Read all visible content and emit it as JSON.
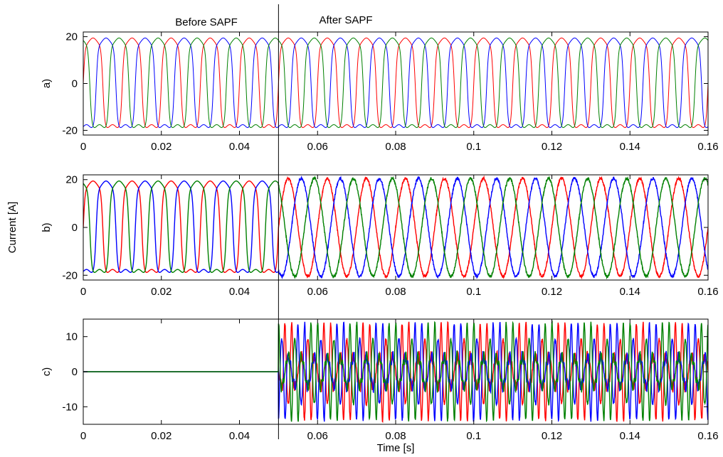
{
  "annotations": {
    "before": "Before SAPF",
    "after": "After SAPF",
    "switch_time": 0.05
  },
  "chart_data": [
    {
      "type": "line",
      "panel_label": "a)",
      "xlabel": "",
      "ylabel": "",
      "xlim": [
        0,
        0.16
      ],
      "ylim": [
        -22,
        22
      ],
      "xticks": [
        0,
        0.02,
        0.04,
        0.06,
        0.08,
        0.1,
        0.12,
        0.14,
        0.16
      ],
      "xtick_labels": [
        "0",
        "0.02",
        "0.04",
        "0.06",
        "0.08",
        "0.1",
        "0.12",
        "0.14",
        "0.16"
      ],
      "yticks": [
        -20,
        0,
        20
      ],
      "ytick_labels": [
        "-20",
        "0",
        "20"
      ],
      "description": "Three-phase distorted load current (quasi-square), unchanged before and after SAPF",
      "series": [
        {
          "color": "#ff0000",
          "phase_deg": 0,
          "before": {
            "shape": "quasi-square",
            "amplitude": 18.5
          },
          "after": {
            "shape": "quasi-square",
            "amplitude": 18.5
          }
        },
        {
          "color": "#0000ff",
          "phase_deg": -120,
          "before": {
            "shape": "quasi-square",
            "amplitude": 18.5
          },
          "after": {
            "shape": "quasi-square",
            "amplitude": 18.5
          }
        },
        {
          "color": "#008000",
          "phase_deg": 120,
          "before": {
            "shape": "quasi-square",
            "amplitude": 18.5
          },
          "after": {
            "shape": "quasi-square",
            "amplitude": 18.5
          }
        }
      ],
      "frequency_hz": 100,
      "grid": false
    },
    {
      "type": "line",
      "panel_label": "b)",
      "xlabel": "",
      "ylabel": "Current [A]",
      "xlim": [
        0,
        0.16
      ],
      "ylim": [
        -22,
        22
      ],
      "xticks": [
        0,
        0.02,
        0.04,
        0.06,
        0.08,
        0.1,
        0.12,
        0.14,
        0.16
      ],
      "xtick_labels": [
        "0",
        "0.02",
        "0.04",
        "0.06",
        "0.08",
        "0.1",
        "0.12",
        "0.14",
        "0.16"
      ],
      "yticks": [
        -20,
        0,
        20
      ],
      "ytick_labels": [
        "-20",
        "0",
        "20"
      ],
      "description": "Source current: quasi-square before SAPF, sinusoidal after SAPF",
      "series": [
        {
          "color": "#ff0000",
          "phase_deg": 0,
          "before": {
            "shape": "quasi-square",
            "amplitude": 18.5
          },
          "after": {
            "shape": "sine",
            "amplitude": 20.5
          }
        },
        {
          "color": "#0000ff",
          "phase_deg": -120,
          "before": {
            "shape": "quasi-square",
            "amplitude": 18.5
          },
          "after": {
            "shape": "sine",
            "amplitude": 20.5
          }
        },
        {
          "color": "#008000",
          "phase_deg": 120,
          "before": {
            "shape": "quasi-square",
            "amplitude": 18.5
          },
          "after": {
            "shape": "sine",
            "amplitude": 20.5
          }
        }
      ],
      "frequency_hz": 100,
      "grid": false
    },
    {
      "type": "line",
      "panel_label": "c)",
      "xlabel": "Time [s]",
      "ylabel": "",
      "xlim": [
        0,
        0.16
      ],
      "ylim": [
        -15,
        15
      ],
      "xticks": [
        0,
        0.02,
        0.04,
        0.06,
        0.08,
        0.1,
        0.12,
        0.14,
        0.16
      ],
      "xtick_labels": [
        "0",
        "0.02",
        "0.04",
        "0.06",
        "0.08",
        "0.1",
        "0.12",
        "0.14",
        "0.16"
      ],
      "yticks": [
        -10,
        0,
        10
      ],
      "ytick_labels": [
        "-10",
        "0",
        "10"
      ],
      "description": "Compensating filter current: zero before SAPF, harmonic current (peak about 12) after SAPF",
      "series": [
        {
          "color": "#ff0000",
          "phase_deg": 0,
          "before": {
            "shape": "zero",
            "amplitude": 0
          },
          "after": {
            "shape": "compensation",
            "amplitude": 12
          }
        },
        {
          "color": "#0000ff",
          "phase_deg": -120,
          "before": {
            "shape": "zero",
            "amplitude": 0
          },
          "after": {
            "shape": "compensation",
            "amplitude": 12
          }
        },
        {
          "color": "#008000",
          "phase_deg": 120,
          "before": {
            "shape": "zero",
            "amplitude": 0
          },
          "after": {
            "shape": "compensation",
            "amplitude": 12
          }
        }
      ],
      "frequency_hz": 100,
      "grid": false
    }
  ]
}
